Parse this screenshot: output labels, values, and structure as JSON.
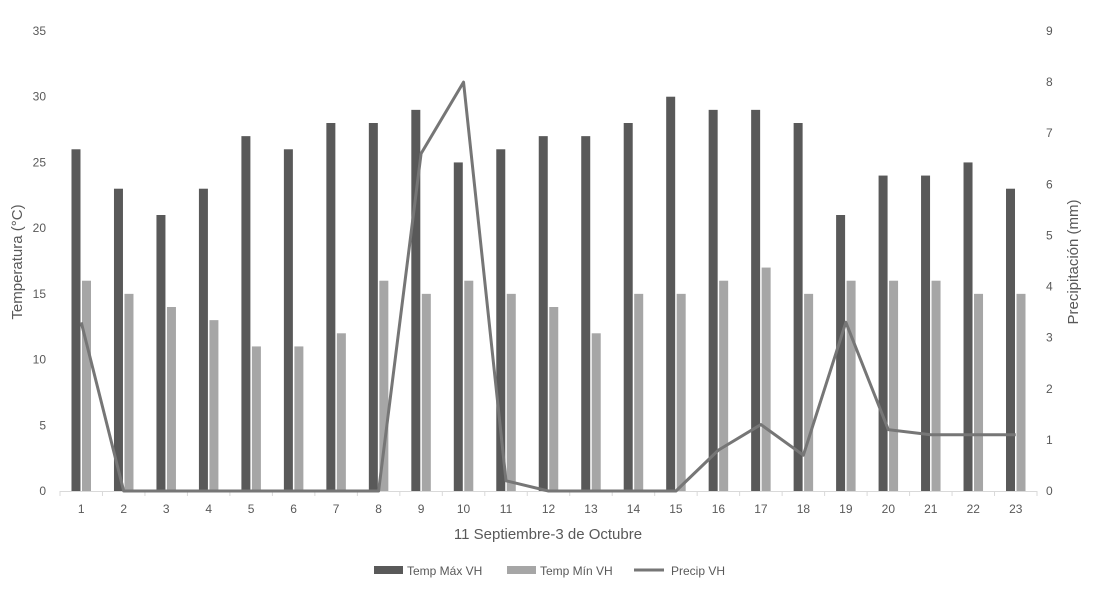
{
  "chart_data": {
    "type": "bar",
    "xlabel": "11 Septiembre-3 de Octubre",
    "ylabel": "Temperatura (°C)",
    "y2label": "Precipitación (mm)",
    "ylim": [
      0,
      35
    ],
    "y2lim": [
      0,
      9
    ],
    "y_ticks": [
      "0",
      "5",
      "10",
      "15",
      "20",
      "25",
      "30",
      "35"
    ],
    "y2_ticks": [
      "0",
      "1",
      "2",
      "3",
      "4",
      "5",
      "6",
      "7",
      "8",
      "9"
    ],
    "categories": [
      "1",
      "2",
      "3",
      "4",
      "5",
      "6",
      "7",
      "8",
      "9",
      "10",
      "11",
      "12",
      "13",
      "14",
      "15",
      "16",
      "17",
      "18",
      "19",
      "20",
      "21",
      "22",
      "23"
    ],
    "grid": false,
    "legend_position": "bottom",
    "series": [
      {
        "name": "Temp Máx VH",
        "kind": "bar",
        "axis": "left",
        "color": "#595959",
        "values": [
          26,
          23,
          21,
          23,
          27,
          26,
          28,
          28,
          29,
          25,
          26,
          27,
          27,
          28,
          30,
          29,
          29,
          28,
          21,
          24,
          24,
          25,
          23
        ]
      },
      {
        "name": "Temp Mín VH",
        "kind": "bar",
        "axis": "left",
        "color": "#a6a6a6",
        "values": [
          16,
          15,
          14,
          13,
          11,
          11,
          12,
          16,
          15,
          16,
          15,
          14,
          12,
          15,
          15,
          16,
          17,
          15,
          16,
          16,
          16,
          15,
          15
        ]
      },
      {
        "name": "Precip VH",
        "kind": "line",
        "axis": "right",
        "color": "#767676",
        "values": [
          3.3,
          0,
          0,
          0,
          0,
          0,
          0,
          0,
          6.6,
          8,
          0.2,
          0,
          0,
          0,
          0,
          0.8,
          1.3,
          0.7,
          3.3,
          1.2,
          1.1,
          1.1,
          1.1
        ]
      }
    ]
  }
}
